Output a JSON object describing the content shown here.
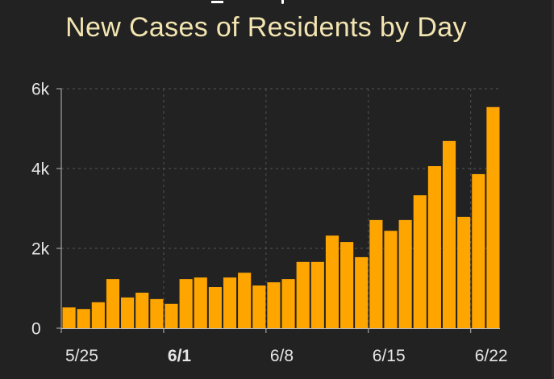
{
  "colors": {
    "background": "#222222",
    "title": "#F3E5B1",
    "tick_label": "#E6E6E6",
    "bar": "#FFA500",
    "grid": "#555555",
    "axis": "#BBBBBB",
    "edge": "#2E2E2E"
  },
  "chart_data": {
    "type": "bar",
    "title": "New Cases of Residents by Day",
    "values": [
      520,
      480,
      650,
      1230,
      770,
      890,
      730,
      610,
      1230,
      1270,
      1030,
      1270,
      1390,
      1070,
      1150,
      1230,
      1660,
      1660,
      2320,
      2160,
      1780,
      2710,
      2440,
      2710,
      3330,
      4060,
      4690,
      2790,
      3860,
      5540
    ],
    "ylim": [
      0,
      6000
    ],
    "y_ticks": [
      {
        "value": 6000,
        "label": "6k"
      },
      {
        "value": 4000,
        "label": "4k"
      },
      {
        "value": 2000,
        "label": "2k"
      },
      {
        "value": 0,
        "label": "0"
      }
    ],
    "x_ticks": [
      {
        "index": 0,
        "label": "5/25"
      },
      {
        "index": 7,
        "label": "6/1",
        "bold": true
      },
      {
        "index": 14,
        "label": "6/8"
      },
      {
        "index": 21,
        "label": "6/15"
      },
      {
        "index": 28,
        "label": "6/22"
      }
    ],
    "grid": true
  }
}
